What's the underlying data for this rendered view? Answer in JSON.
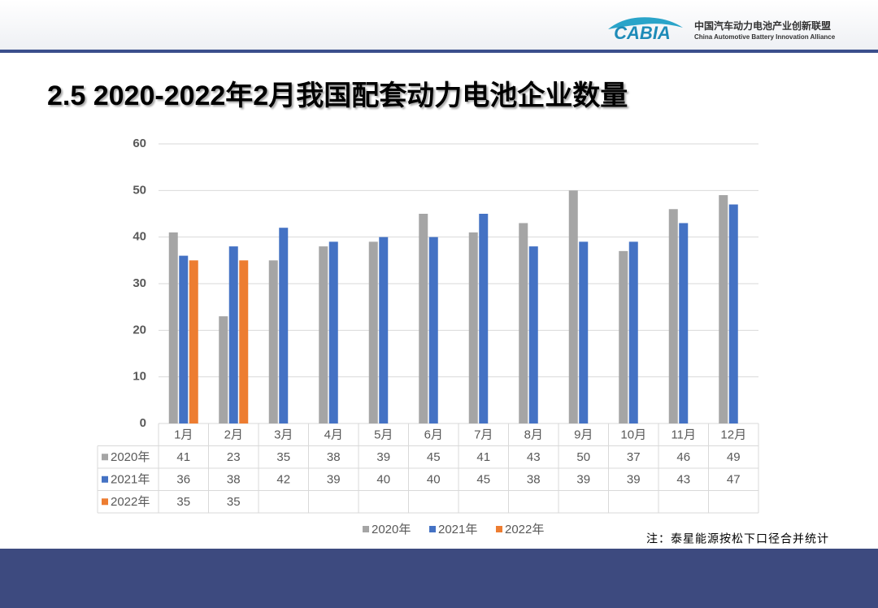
{
  "header": {
    "logo": "CABIA",
    "org_cn": "中国汽车动力电池产业创新联盟",
    "org_en": "China Automotive Battery Innovation Alliance"
  },
  "chart_data": {
    "type": "bar",
    "title": "2.5 2020-2022年2月我国配套动力电池企业数量",
    "categories": [
      "1月",
      "2月",
      "3月",
      "4月",
      "5月",
      "6月",
      "7月",
      "8月",
      "9月",
      "10月",
      "11月",
      "12月"
    ],
    "series": [
      {
        "name": "2020年",
        "color": "#a5a5a5",
        "values": [
          41,
          23,
          35,
          38,
          39,
          45,
          41,
          43,
          50,
          37,
          46,
          49
        ]
      },
      {
        "name": "2021年",
        "color": "#4472c4",
        "values": [
          36,
          38,
          42,
          39,
          40,
          40,
          45,
          38,
          39,
          39,
          43,
          47
        ]
      },
      {
        "name": "2022年",
        "color": "#ed7d31",
        "values": [
          35,
          35,
          null,
          null,
          null,
          null,
          null,
          null,
          null,
          null,
          null,
          null
        ]
      }
    ],
    "ylim": [
      0,
      60
    ],
    "yticks": [
      0,
      10,
      20,
      30,
      40,
      50,
      60
    ],
    "grid": true,
    "note": "注：泰星能源按松下口径合并统计"
  }
}
